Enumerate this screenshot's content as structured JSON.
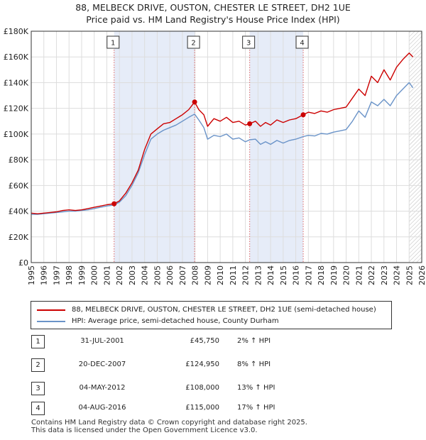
{
  "title_line1": "88, MELBECK DRIVE, OUSTON, CHESTER LE STREET, DH2 1UE",
  "title_line2": "Price paid vs. HM Land Registry's House Price Index (HPI)",
  "legend": {
    "property": "88, MELBECK DRIVE, OUSTON, CHESTER LE STREET, DH2 1UE (semi-detached house)",
    "hpi": "HPI: Average price, semi-detached house, County Durham"
  },
  "sales": [
    {
      "num": "1",
      "date": "31-JUL-2001",
      "price": "£45,750",
      "hpi": "2% ↑ HPI"
    },
    {
      "num": "2",
      "date": "20-DEC-2007",
      "price": "£124,950",
      "hpi": "8% ↑ HPI"
    },
    {
      "num": "3",
      "date": "04-MAY-2012",
      "price": "£108,000",
      "hpi": "13% ↑ HPI"
    },
    {
      "num": "4",
      "date": "04-AUG-2016",
      "price": "£115,000",
      "hpi": "17% ↑ HPI"
    }
  ],
  "footer_line1": "Contains HM Land Registry data © Crown copyright and database right 2025.",
  "footer_line2": "This data is licensed under the Open Government Licence v3.0.",
  "colors": {
    "property": "#cc0000",
    "hpi": "#6a93c8",
    "shade": "#e6ecf8",
    "grid": "#dddddd",
    "vline": "#dd6666"
  },
  "chart_data": {
    "type": "line",
    "title": "88, MELBECK DRIVE, OUSTON, CHESTER LE STREET, DH2 1UE — Price paid vs. HM Land Registry's House Price Index (HPI)",
    "xlabel": "",
    "ylabel": "",
    "xlim": [
      1995,
      2026
    ],
    "ylim": [
      0,
      180000
    ],
    "x_ticks": [
      1995,
      1996,
      1997,
      1998,
      1999,
      2000,
      2001,
      2002,
      2003,
      2004,
      2005,
      2006,
      2007,
      2008,
      2009,
      2010,
      2011,
      2012,
      2013,
      2014,
      2015,
      2016,
      2017,
      2018,
      2019,
      2020,
      2021,
      2022,
      2023,
      2024,
      2025,
      2026
    ],
    "y_ticks": [
      0,
      20000,
      40000,
      60000,
      80000,
      100000,
      120000,
      140000,
      160000,
      180000
    ],
    "y_tick_labels": [
      "£0",
      "£20K",
      "£40K",
      "£60K",
      "£80K",
      "£100K",
      "£120K",
      "£140K",
      "£160K",
      "£180K"
    ],
    "grid": true,
    "legend_position": "below",
    "shaded_ranges": [
      [
        2001.58,
        2007.97
      ],
      [
        2012.34,
        2016.59
      ]
    ],
    "hatched_from": 2025.0,
    "markers": [
      {
        "label": "1",
        "x": 2001.58,
        "y": 45750
      },
      {
        "label": "2",
        "x": 2007.97,
        "y": 124950
      },
      {
        "label": "3",
        "x": 2012.34,
        "y": 108000
      },
      {
        "label": "4",
        "x": 2016.59,
        "y": 115000
      }
    ],
    "series": [
      {
        "name": "88, MELBECK DRIVE, OUSTON, CHESTER LE STREET, DH2 1UE (semi-detached house)",
        "x": [
          1995,
          1995.5,
          1996,
          1996.5,
          1997,
          1997.5,
          1998,
          1998.5,
          1999,
          1999.5,
          2000,
          2000.5,
          2001,
          2001.58,
          2002,
          2002.5,
          2003,
          2003.5,
          2004,
          2004.5,
          2005,
          2005.5,
          2006,
          2006.5,
          2007,
          2007.5,
          2007.97,
          2008.3,
          2008.7,
          2009,
          2009.5,
          2010,
          2010.5,
          2011,
          2011.5,
          2012,
          2012.34,
          2012.8,
          2013.2,
          2013.6,
          2014,
          2014.5,
          2015,
          2015.5,
          2016,
          2016.59,
          2017,
          2017.5,
          2018,
          2018.5,
          2019,
          2019.5,
          2020,
          2020.5,
          2021,
          2021.5,
          2022,
          2022.5,
          2023,
          2023.5,
          2024,
          2024.5,
          2025,
          2025.3
        ],
        "y": [
          38500,
          38000,
          38500,
          39000,
          39500,
          40500,
          41000,
          40500,
          41000,
          42000,
          43000,
          44000,
          45000,
          45750,
          48000,
          54000,
          62000,
          72000,
          88000,
          100000,
          104000,
          108000,
          109000,
          112000,
          115000,
          119000,
          124950,
          119000,
          115000,
          106000,
          112000,
          110000,
          113000,
          109000,
          110000,
          107000,
          108000,
          110000,
          106000,
          109000,
          107000,
          111000,
          109000,
          111000,
          112000,
          115000,
          117000,
          116000,
          118000,
          117000,
          119000,
          120000,
          121000,
          128000,
          135000,
          130000,
          145000,
          140000,
          150000,
          142000,
          152000,
          158000,
          163000,
          160000
        ]
      },
      {
        "name": "HPI: Average price, semi-detached house, County Durham",
        "x": [
          1995,
          1995.5,
          1996,
          1996.5,
          1997,
          1997.5,
          1998,
          1998.5,
          1999,
          1999.5,
          2000,
          2000.5,
          2001,
          2001.58,
          2002,
          2002.5,
          2003,
          2003.5,
          2004,
          2004.5,
          2005,
          2005.5,
          2006,
          2006.5,
          2007,
          2007.5,
          2007.97,
          2008.3,
          2008.7,
          2009,
          2009.5,
          2010,
          2010.5,
          2011,
          2011.5,
          2012,
          2012.34,
          2012.8,
          2013.2,
          2013.6,
          2014,
          2014.5,
          2015,
          2015.5,
          2016,
          2016.59,
          2017,
          2017.5,
          2018,
          2018.5,
          2019,
          2019.5,
          2020,
          2020.5,
          2021,
          2021.5,
          2022,
          2022.5,
          2023,
          2023.5,
          2024,
          2024.5,
          2025,
          2025.3
        ],
        "y": [
          37500,
          37500,
          38000,
          38500,
          39000,
          39500,
          40000,
          40000,
          40500,
          41000,
          42000,
          43000,
          44000,
          44800,
          47000,
          52000,
          60000,
          70000,
          84000,
          96000,
          100000,
          103000,
          105000,
          107000,
          110000,
          113000,
          115500,
          111000,
          105000,
          96000,
          99000,
          98000,
          100000,
          96000,
          97000,
          94000,
          95500,
          96000,
          92000,
          94000,
          92000,
          95000,
          93000,
          95000,
          96000,
          98000,
          99000,
          98500,
          100500,
          100000,
          101500,
          102500,
          103500,
          110000,
          118000,
          113000,
          125000,
          122000,
          127000,
          122000,
          130000,
          135000,
          140000,
          136000
        ]
      }
    ]
  }
}
